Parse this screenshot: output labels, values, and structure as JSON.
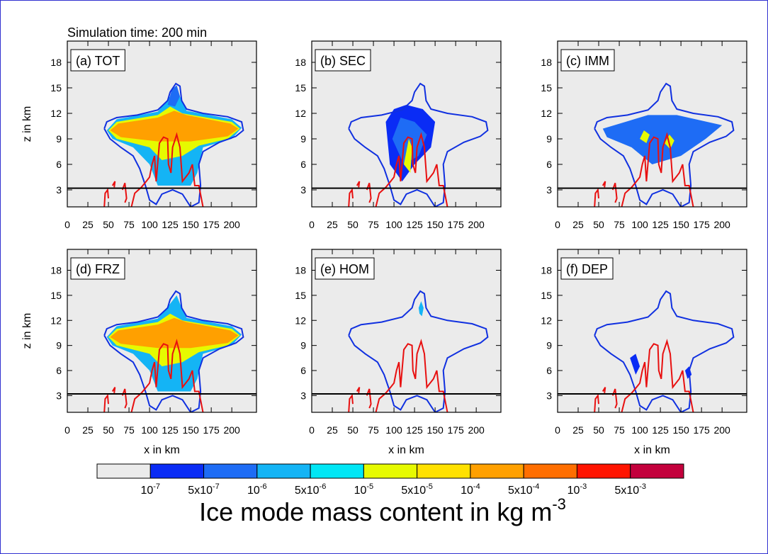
{
  "figure": {
    "title": "Simulation time: 200 min",
    "colorbar": {
      "title": "Ice mode mass content in kg m",
      "title_sup": "-3",
      "colors": [
        "#ebebeb",
        "#0a2cf5",
        "#1e6cf5",
        "#14b4f5",
        "#00e6f5",
        "#e6fa00",
        "#ffe100",
        "#ffa000",
        "#ff6e00",
        "#ff1400",
        "#c3003c"
      ],
      "levels": [
        {
          "value": 1e-07,
          "label": "10",
          "sup": "-7"
        },
        {
          "value": 5e-07,
          "label": "5x10",
          "sup": "-7"
        },
        {
          "value": 1e-06,
          "label": "10",
          "sup": "-6"
        },
        {
          "value": 5e-06,
          "label": "5x10",
          "sup": "-6"
        },
        {
          "value": 1e-05,
          "label": "10",
          "sup": "-5"
        },
        {
          "value": 5e-05,
          "label": "5x10",
          "sup": "-5"
        },
        {
          "value": 0.0001,
          "label": "10",
          "sup": "-4"
        },
        {
          "value": 0.0005,
          "label": "5x10",
          "sup": "-4"
        },
        {
          "value": 0.001,
          "label": "10",
          "sup": "-3"
        },
        {
          "value": 0.005,
          "label": "5x10",
          "sup": "-3"
        }
      ]
    }
  },
  "chart_data": [
    {
      "type": "contour",
      "title": "(a) TOT",
      "y_label": "z in km",
      "xlim": [
        0,
        230
      ],
      "ylim": [
        1,
        20.5
      ],
      "xticks": [
        0,
        25,
        50,
        75,
        100,
        125,
        150,
        175,
        200
      ],
      "yticks": [
        3,
        6,
        9,
        12,
        15,
        18
      ]
    },
    {
      "type": "contour",
      "title": "(b) SEC",
      "xlim": [
        0,
        230
      ],
      "ylim": [
        1,
        20.5
      ],
      "xticks": [
        0,
        25,
        50,
        75,
        100,
        125,
        150,
        175,
        200
      ],
      "yticks": [
        3,
        6,
        9,
        12,
        15,
        18
      ]
    },
    {
      "type": "contour",
      "title": "(c) IMM",
      "xlim": [
        0,
        230
      ],
      "ylim": [
        1,
        20.5
      ],
      "xticks": [
        0,
        25,
        50,
        75,
        100,
        125,
        150,
        175,
        200
      ],
      "yticks": [
        3,
        6,
        9,
        12,
        15,
        18
      ]
    },
    {
      "type": "contour",
      "title": "(d) FRZ",
      "y_label": "z in km",
      "x_label": "x in km",
      "xlim": [
        0,
        230
      ],
      "ylim": [
        1,
        20.5
      ],
      "xticks": [
        0,
        25,
        50,
        75,
        100,
        125,
        150,
        175,
        200
      ],
      "yticks": [
        3,
        6,
        9,
        12,
        15,
        18
      ]
    },
    {
      "type": "contour",
      "title": "(e) HOM",
      "x_label": "x in km",
      "xlim": [
        0,
        230
      ],
      "ylim": [
        1,
        20.5
      ],
      "xticks": [
        0,
        25,
        50,
        75,
        100,
        125,
        150,
        175,
        200
      ],
      "yticks": [
        3,
        6,
        9,
        12,
        15,
        18
      ]
    },
    {
      "type": "contour",
      "title": "(f) DEP",
      "x_label": "x in km",
      "xlim": [
        0,
        230
      ],
      "ylim": [
        1,
        20.5
      ],
      "xticks": [
        0,
        25,
        50,
        75,
        100,
        125,
        150,
        175,
        200
      ],
      "yticks": [
        3,
        6,
        9,
        12,
        15,
        18
      ]
    }
  ]
}
